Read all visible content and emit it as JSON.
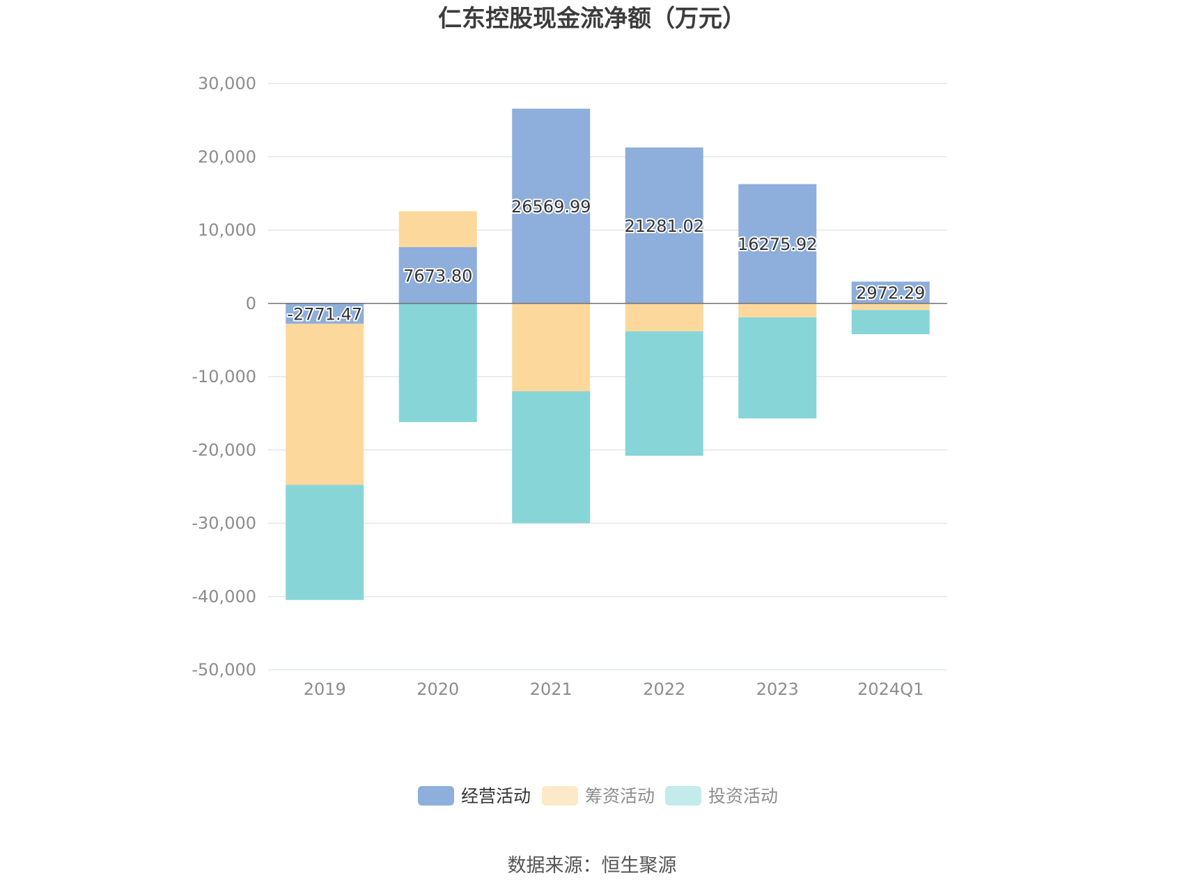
{
  "chart_data": {
    "type": "bar",
    "stacked": true,
    "title": "仁东控股现金流净额（万元）",
    "categories": [
      "2019",
      "2020",
      "2021",
      "2022",
      "2023",
      "2024Q1"
    ],
    "series": [
      {
        "name": "经营活动",
        "color": "#8eaedb",
        "values": [
          -2771.47,
          7673.8,
          26569.99,
          21281.02,
          16275.92,
          2972.29
        ],
        "labels": [
          "-2771.47",
          "7673.80",
          "26569.99",
          "21281.02",
          "16275.92",
          "2972.29"
        ]
      },
      {
        "name": "筹资活动",
        "color": "#fdd89c",
        "values": [
          -22000,
          4900,
          -12000,
          -3800,
          -1900,
          -900
        ]
      },
      {
        "name": "投资活动",
        "color": "#88d5d8",
        "values": [
          -15700,
          -16200,
          -18000,
          -17000,
          -13800,
          -3300
        ]
      }
    ],
    "ylim": [
      -50000,
      30000
    ],
    "yticks": [
      "30,000",
      "20,000",
      "10,000",
      "0",
      "-10,000",
      "-20,000",
      "-30,000",
      "-40,000",
      "-50,000"
    ],
    "ytick_values": [
      30000,
      20000,
      10000,
      0,
      -10000,
      -20000,
      -30000,
      -40000,
      -50000
    ],
    "grid": true,
    "legend_position": "bottom"
  },
  "legend": {
    "items": [
      {
        "label": "经营活动",
        "color": "#8eaedb",
        "text_color": "#333333"
      },
      {
        "label": "筹资活动",
        "color": "#fde8c7",
        "text_color": "#8c8c8c"
      },
      {
        "label": "投资活动",
        "color": "#c4ebec",
        "text_color": "#8c8c8c"
      }
    ]
  },
  "source": "数据来源：恒生聚源"
}
